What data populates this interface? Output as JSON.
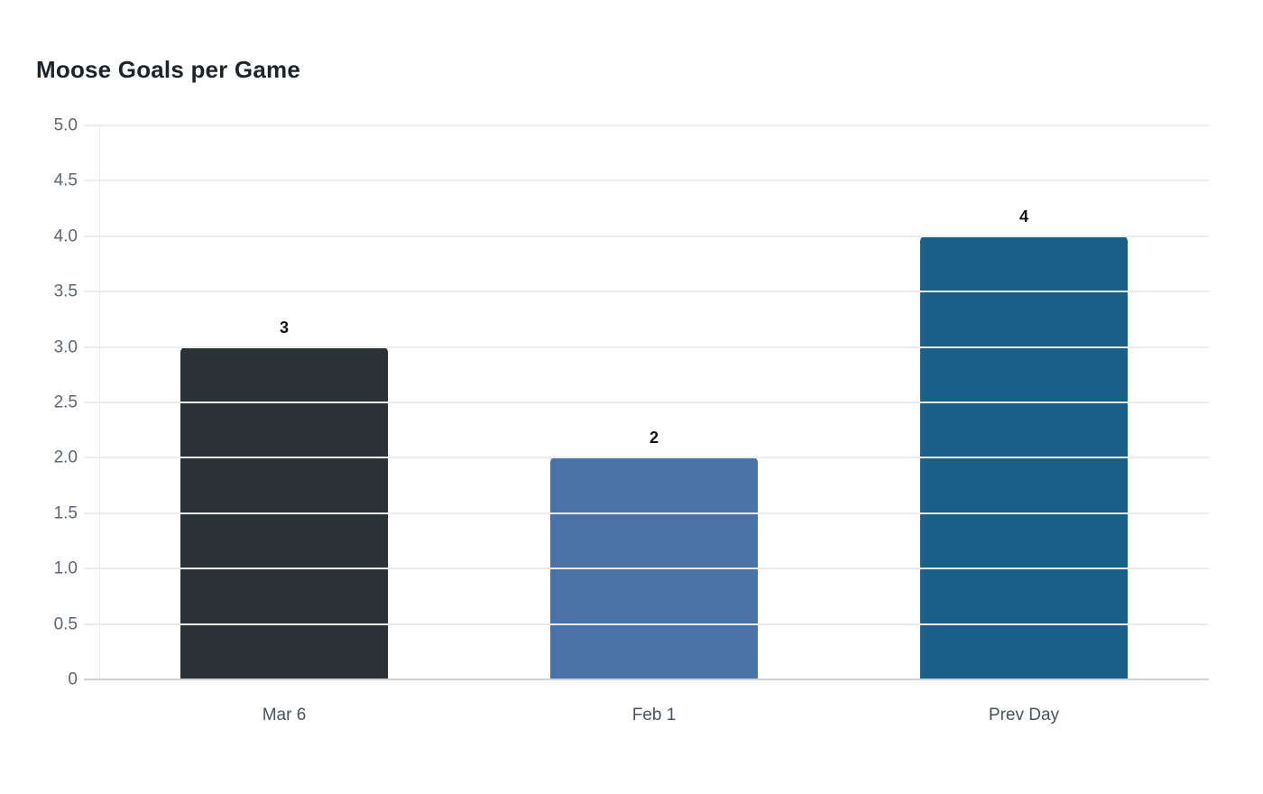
{
  "chart_data": {
    "type": "bar",
    "title": "Moose Goals per Game",
    "categories": [
      "Mar 6",
      "Feb 1",
      "Prev Day"
    ],
    "values": [
      3,
      2,
      4
    ],
    "value_labels": [
      "3",
      "2",
      "4"
    ],
    "bar_colors": [
      "#2b3236",
      "#4b72a8",
      "#19618a"
    ],
    "ylim": [
      0,
      5
    ],
    "ytick_step": 0.5,
    "ytick_labels": [
      "0",
      "0.5",
      "1.0",
      "1.5",
      "2.0",
      "2.5",
      "3.0",
      "3.5",
      "4.0",
      "4.5",
      "5.0"
    ],
    "xlabel": "",
    "ylabel": "",
    "grid": "horizontal",
    "legend": "none",
    "colors": {
      "background": "#ffffff",
      "gridline": "#ececec",
      "baseline": "#d0d0d0",
      "y_tick_text": "#5b6670",
      "x_tick_text": "#47525e",
      "title_text": "#1c232b",
      "value_label_text": "#111111"
    }
  }
}
